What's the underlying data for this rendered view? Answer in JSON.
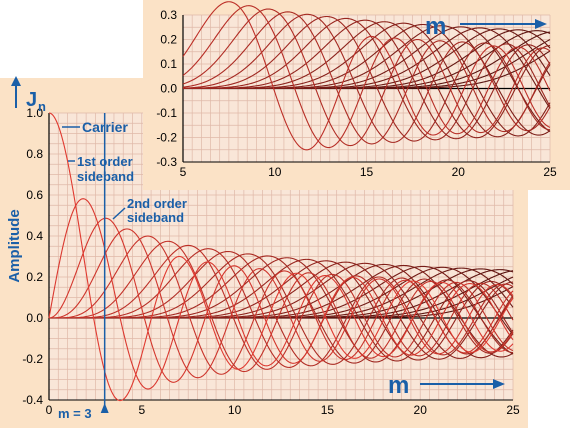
{
  "colors": {
    "panel_bg": "#fbe2c6",
    "plot_bg": "#f9e6d8",
    "grid": "#dfb8a8",
    "axis": "#000000",
    "annotation_blue": "#1a5fa8",
    "curve_light": "#e03a30",
    "curve_dark": "#5a1410"
  },
  "chart_data": [
    {
      "id": "main",
      "type": "line",
      "title": "",
      "ylabel": "Amplitude",
      "ylabel_symbol": "J",
      "ylabel_symbol_sub": "n",
      "xlabel": "m",
      "xlim": [
        0,
        25
      ],
      "ylim": [
        -0.4,
        1.0
      ],
      "x_ticks": [
        "0",
        "5",
        "10",
        "15",
        "20",
        "25"
      ],
      "y_ticks": [
        "1.0",
        "0.8",
        "0.6",
        "0.4",
        "0.2",
        "0.0",
        "-0.2",
        "-0.4"
      ],
      "series_family": "Bessel functions of the first kind J_n(m)",
      "orders": [
        0,
        25
      ],
      "series": [
        {
          "name": "Carrier",
          "order": 0,
          "peak": {
            "x": 0,
            "y": 1.0
          }
        },
        {
          "name": "1st order sideband",
          "order": 1,
          "peak": {
            "x": 1.84,
            "y": 0.58
          }
        },
        {
          "name": "2nd order sideband",
          "order": 2,
          "peak": {
            "x": 3.05,
            "y": 0.49
          }
        }
      ],
      "annotations": [
        {
          "text": "Carrier"
        },
        {
          "text": "1st order sideband",
          "lines": [
            "1st order",
            "sideband"
          ]
        },
        {
          "text": "2nd order sideband",
          "lines": [
            "2nd order",
            "sideband"
          ]
        },
        {
          "text": "m = 3",
          "x": 3
        }
      ]
    },
    {
      "id": "inset",
      "type": "line",
      "title": "",
      "xlabel": "m",
      "xlim": [
        5,
        25
      ],
      "ylim": [
        -0.3,
        0.3
      ],
      "x_ticks": [
        "5",
        "10",
        "15",
        "20",
        "25"
      ],
      "y_ticks": [
        "0.3",
        "0.2",
        "0.1",
        "0.0",
        "-0.1",
        "-0.2",
        "-0.3"
      ],
      "series_family": "Bessel functions of the first kind J_n(m)",
      "orders": [
        6,
        25
      ]
    }
  ]
}
